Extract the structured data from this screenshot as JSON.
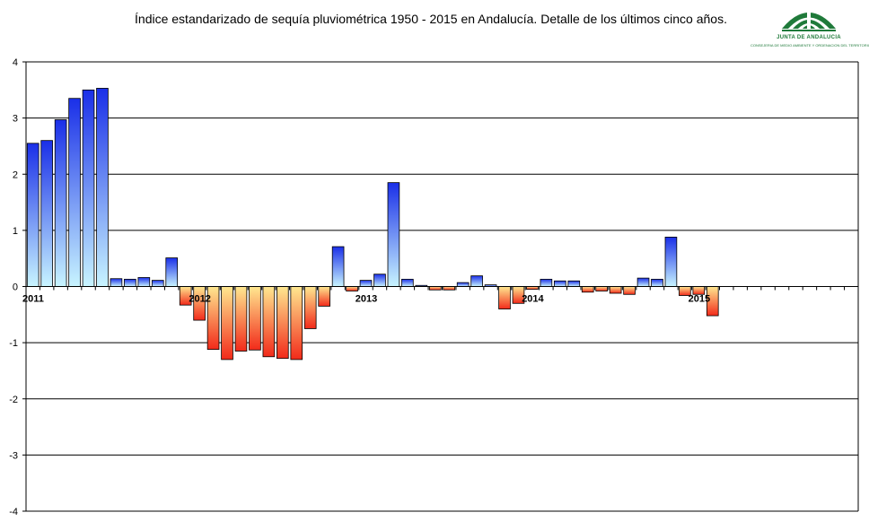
{
  "title": "Índice estandarizado de sequía pluviométrica 1950 - 2015 en Andalucía.  Detalle de los últimos cinco años.",
  "logo": {
    "line1": "JUNTA DE ANDALUCIA",
    "line2": "CONSEJERIA DE MEDIO AMBIENTE Y ORDENACION DEL TERRITORIO",
    "color": "#1f7a3a"
  },
  "colors": {
    "positive_dark": "#1a2fe8",
    "positive_light": "#c8f4ff",
    "negative_light": "#ffe890",
    "negative_dark": "#f22a1a",
    "gridline": "#000000"
  },
  "chart_data": {
    "type": "bar",
    "ylim": [
      -4,
      4
    ],
    "yticks": [
      -4,
      -3,
      -2,
      -1,
      0,
      1,
      2,
      3,
      4
    ],
    "year_labels": [
      {
        "label": "2011",
        "index": 0
      },
      {
        "label": "2012",
        "index": 12
      },
      {
        "label": "2013",
        "index": 24
      },
      {
        "label": "2014",
        "index": 36
      },
      {
        "label": "2015",
        "index": 48
      }
    ],
    "total_slots": 60,
    "values": [
      2.55,
      2.6,
      2.97,
      3.35,
      3.5,
      3.53,
      0.14,
      0.13,
      0.16,
      0.11,
      0.51,
      -0.33,
      -0.6,
      -1.12,
      -1.3,
      -1.15,
      -1.13,
      -1.25,
      -1.28,
      -1.3,
      -0.75,
      -0.35,
      0.71,
      -0.08,
      0.11,
      0.22,
      1.85,
      0.13,
      0.02,
      -0.06,
      -0.06,
      0.07,
      0.19,
      0.03,
      -0.4,
      -0.3,
      -0.05,
      0.13,
      0.1,
      0.1,
      -0.1,
      -0.08,
      -0.12,
      -0.14,
      0.15,
      0.13,
      0.88,
      -0.16,
      -0.14,
      -0.52
    ]
  }
}
